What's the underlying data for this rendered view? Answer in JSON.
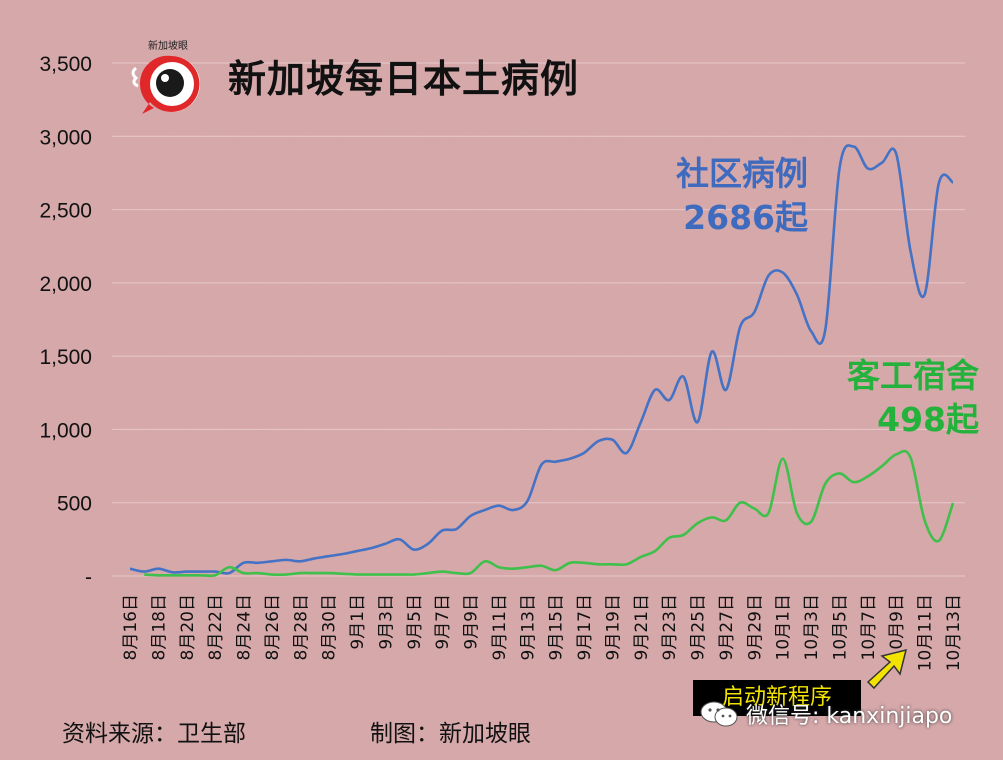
{
  "title": "新加坡每日本土病例",
  "logo_text": "新加坡眼",
  "annotations": {
    "community_label": "社区病例",
    "community_value": "2686起",
    "dorm_label": "客工宿舍",
    "dorm_value": "498起"
  },
  "footer": {
    "source": "资料来源：卫生部",
    "credit": "制图：新加坡眼"
  },
  "overlay": {
    "promo": "启动新程序",
    "wechat": "微信号: kanxinjiapo"
  },
  "colors": {
    "background": "#d8a9ab",
    "community": "#4472c4",
    "dorm": "#3fc04a",
    "community_text": "#3f6bbf",
    "dorm_text": "#24b23c"
  },
  "chart_data": {
    "type": "line",
    "title": "新加坡每日本土病例",
    "ylim": [
      0,
      3500
    ],
    "y_ticks": [
      0,
      500,
      1000,
      1500,
      2000,
      2500,
      3000,
      3500
    ],
    "y_tick_labels": [
      "-",
      "500",
      "1,000",
      "1,500",
      "2,000",
      "2,500",
      "3,000",
      "3,500"
    ],
    "grid": true,
    "x_tick_labels": [
      "8月16日",
      "8月18日",
      "8月20日",
      "8月22日",
      "8月24日",
      "8月26日",
      "8月28日",
      "8月30日",
      "9月1日",
      "9月3日",
      "9月5日",
      "9月7日",
      "9月9日",
      "9月11日",
      "9月13日",
      "9月15日",
      "9月17日",
      "9月19日",
      "9月21日",
      "9月23日",
      "9月25日",
      "9月27日",
      "9月29日",
      "10月1日",
      "10月3日",
      "10月5日",
      "10月7日",
      "10月9日",
      "10月11日",
      "10月13日"
    ],
    "x": [
      "8月16日",
      "8月17日",
      "8月18日",
      "8月19日",
      "8月20日",
      "8月21日",
      "8月22日",
      "8月23日",
      "8月24日",
      "8月25日",
      "8月26日",
      "8月27日",
      "8月28日",
      "8月29日",
      "8月30日",
      "8月31日",
      "9月1日",
      "9月2日",
      "9月3日",
      "9月4日",
      "9月5日",
      "9月6日",
      "9月7日",
      "9月8日",
      "9月9日",
      "9月10日",
      "9月11日",
      "9月12日",
      "9月13日",
      "9月14日",
      "9月15日",
      "9月16日",
      "9月17日",
      "9月18日",
      "9月19日",
      "9月20日",
      "9月21日",
      "9月22日",
      "9月23日",
      "9月24日",
      "9月25日",
      "9月26日",
      "9月27日",
      "9月28日",
      "9月29日",
      "9月30日",
      "10月1日",
      "10月2日",
      "10月3日",
      "10月4日",
      "10月5日",
      "10月6日",
      "10月7日",
      "10月8日",
      "10月9日",
      "10月10日",
      "10月11日",
      "10月12日",
      "10月13日"
    ],
    "series": [
      {
        "name": "社区病例",
        "values": [
          50,
          30,
          50,
          25,
          30,
          30,
          30,
          20,
          90,
          90,
          100,
          110,
          100,
          120,
          135,
          150,
          170,
          190,
          220,
          250,
          180,
          220,
          310,
          320,
          410,
          450,
          480,
          450,
          510,
          760,
          780,
          800,
          840,
          920,
          930,
          840,
          1050,
          1270,
          1200,
          1360,
          1050,
          1530,
          1270,
          1700,
          1800,
          2050,
          2070,
          1920,
          1670,
          1680,
          2780,
          2930,
          2780,
          2820,
          2880,
          2220,
          1920,
          2680,
          2686
        ]
      },
      {
        "name": "客工宿舍",
        "values": [
          null,
          10,
          5,
          5,
          5,
          5,
          5,
          60,
          20,
          20,
          10,
          10,
          20,
          20,
          20,
          15,
          10,
          10,
          10,
          10,
          10,
          20,
          30,
          20,
          20,
          100,
          60,
          50,
          60,
          70,
          40,
          90,
          90,
          80,
          80,
          80,
          130,
          170,
          260,
          280,
          360,
          400,
          380,
          500,
          460,
          430,
          800,
          430,
          370,
          630,
          700,
          640,
          680,
          750,
          830,
          810,
          380,
          240,
          498
        ]
      }
    ]
  }
}
